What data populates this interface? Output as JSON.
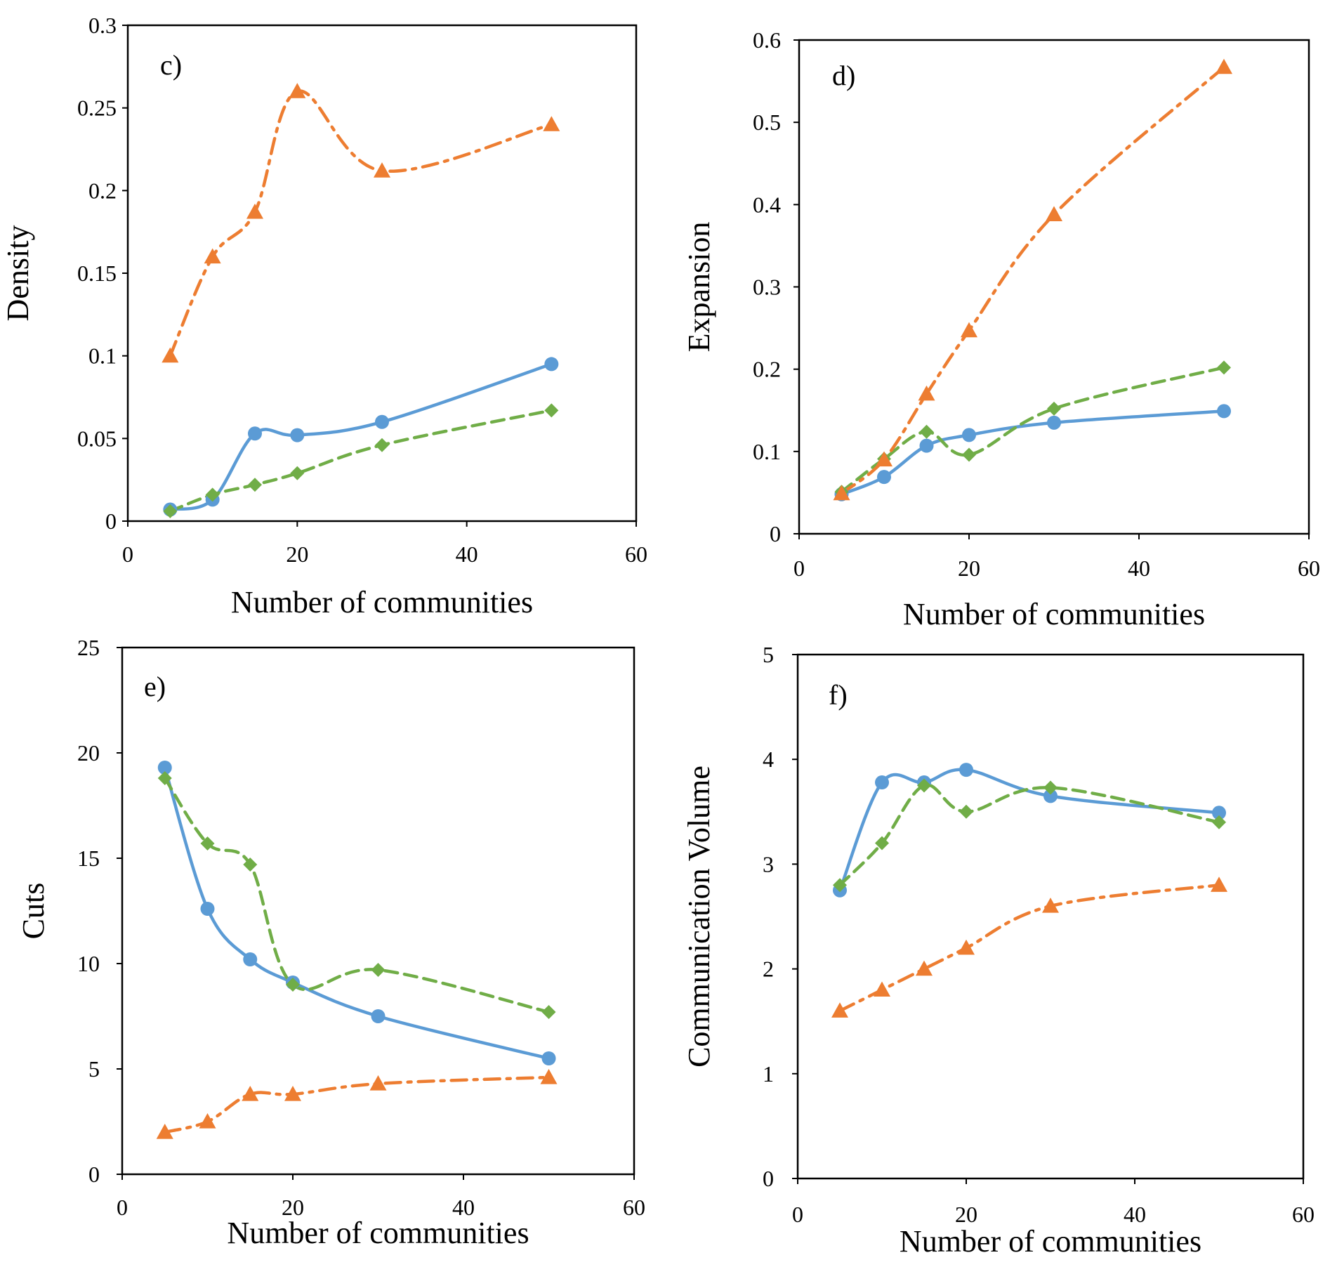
{
  "colors": {
    "blue": "#5B9BD5",
    "orange": "#ED7D31",
    "green": "#70AD47",
    "frame": "#000000"
  },
  "chart_data": [
    {
      "type": "line",
      "panel_label": "c)",
      "xlabel": "Number of communities",
      "ylabel": "Density",
      "xlim": [
        0,
        60
      ],
      "ylim": [
        0,
        0.3
      ],
      "xticks": [
        0,
        20,
        40,
        60
      ],
      "xtick_labels": [
        "0",
        "20",
        "40",
        "60"
      ],
      "yticks": [
        0,
        0.05,
        0.1,
        0.15,
        0.2,
        0.25,
        0.3
      ],
      "ytick_labels": [
        "0",
        "0.05",
        "0.1",
        "0.15",
        "0.2",
        "0.25",
        "0.3"
      ],
      "grid": false,
      "series": [
        {
          "name": "blue-circle-solid",
          "color": "#5B9BD5",
          "marker": "circle",
          "dash": "solid",
          "x": [
            5,
            10,
            15,
            20,
            30,
            50
          ],
          "values": [
            0.007,
            0.013,
            0.053,
            0.052,
            0.06,
            0.095
          ]
        },
        {
          "name": "green-diamond-dashed",
          "color": "#70AD47",
          "marker": "diamond",
          "dash": "dashed",
          "x": [
            5,
            10,
            15,
            20,
            30,
            50
          ],
          "values": [
            0.006,
            0.016,
            0.022,
            0.029,
            0.046,
            0.067
          ]
        },
        {
          "name": "orange-triangle-dashdot",
          "color": "#ED7D31",
          "marker": "triangle",
          "dash": "dashdot",
          "x": [
            5,
            10,
            15,
            20,
            30,
            50
          ],
          "values": [
            0.1,
            0.16,
            0.187,
            0.26,
            0.212,
            0.24
          ]
        }
      ]
    },
    {
      "type": "line",
      "panel_label": "d)",
      "xlabel": "Number of communities",
      "ylabel": "Expansion",
      "xlim": [
        0,
        60
      ],
      "ylim": [
        0,
        0.6
      ],
      "xticks": [
        0,
        20,
        40,
        60
      ],
      "xtick_labels": [
        "0",
        "20",
        "40",
        "60"
      ],
      "yticks": [
        0,
        0.1,
        0.2,
        0.3,
        0.4,
        0.5,
        0.6
      ],
      "ytick_labels": [
        "0",
        "0.1",
        "0.2",
        "0.3",
        "0.4",
        "0.5",
        "0.6"
      ],
      "grid": false,
      "series": [
        {
          "name": "blue-circle-solid",
          "color": "#5B9BD5",
          "marker": "circle",
          "dash": "solid",
          "x": [
            5,
            10,
            15,
            20,
            30,
            50
          ],
          "values": [
            0.048,
            0.069,
            0.107,
            0.12,
            0.135,
            0.149
          ]
        },
        {
          "name": "green-diamond-dashed",
          "color": "#70AD47",
          "marker": "diamond",
          "dash": "dashed",
          "x": [
            5,
            10,
            15,
            20,
            30,
            50
          ],
          "values": [
            0.051,
            0.091,
            0.124,
            0.096,
            0.152,
            0.202
          ]
        },
        {
          "name": "orange-triangle-dashdot",
          "color": "#ED7D31",
          "marker": "triangle",
          "dash": "dashdot",
          "x": [
            5,
            10,
            15,
            20,
            30,
            50
          ],
          "values": [
            0.049,
            0.09,
            0.17,
            0.247,
            0.388,
            0.567
          ]
        }
      ]
    },
    {
      "type": "line",
      "panel_label": "e)",
      "xlabel": "Number of communities",
      "ylabel": "Cuts",
      "xlim": [
        0,
        60
      ],
      "ylim": [
        0,
        25
      ],
      "xticks": [
        0,
        20,
        40,
        60
      ],
      "xtick_labels": [
        "0",
        "20",
        "40",
        "60"
      ],
      "yticks": [
        0,
        5,
        10,
        15,
        20,
        25
      ],
      "ytick_labels": [
        "0",
        "5",
        "10",
        "15",
        "20",
        "25"
      ],
      "grid": false,
      "series": [
        {
          "name": "blue-circle-solid",
          "color": "#5B9BD5",
          "marker": "circle",
          "dash": "solid",
          "x": [
            5,
            10,
            15,
            20,
            30,
            50
          ],
          "values": [
            19.3,
            12.6,
            10.2,
            9.1,
            7.5,
            5.5
          ]
        },
        {
          "name": "green-diamond-dashed",
          "color": "#70AD47",
          "marker": "diamond",
          "dash": "dashed",
          "x": [
            5,
            10,
            15,
            20,
            30,
            50
          ],
          "values": [
            18.8,
            15.7,
            14.7,
            9.0,
            9.7,
            7.7
          ]
        },
        {
          "name": "orange-triangle-dashdot",
          "color": "#ED7D31",
          "marker": "triangle",
          "dash": "dashdot",
          "x": [
            5,
            10,
            15,
            20,
            30,
            50
          ],
          "values": [
            2.0,
            2.5,
            3.8,
            3.8,
            4.3,
            4.6
          ]
        }
      ]
    },
    {
      "type": "line",
      "panel_label": "f)",
      "xlabel": "Number of communities",
      "ylabel": "Communication  Volume",
      "xlim": [
        0,
        60
      ],
      "ylim": [
        0,
        5
      ],
      "xticks": [
        0,
        20,
        40,
        60
      ],
      "xtick_labels": [
        "0",
        "20",
        "40",
        "60"
      ],
      "yticks": [
        0,
        1,
        2,
        3,
        4,
        5
      ],
      "ytick_labels": [
        "0",
        "1",
        "2",
        "3",
        "4",
        "5"
      ],
      "grid": false,
      "series": [
        {
          "name": "blue-circle-solid",
          "color": "#5B9BD5",
          "marker": "circle",
          "dash": "solid",
          "x": [
            5,
            10,
            15,
            20,
            30,
            50
          ],
          "values": [
            2.75,
            3.78,
            3.78,
            3.9,
            3.65,
            3.49
          ]
        },
        {
          "name": "green-diamond-dashed",
          "color": "#70AD47",
          "marker": "diamond",
          "dash": "dashed",
          "x": [
            5,
            10,
            15,
            20,
            30,
            50
          ],
          "values": [
            2.8,
            3.2,
            3.75,
            3.5,
            3.73,
            3.4
          ]
        },
        {
          "name": "orange-triangle-dashdot",
          "color": "#ED7D31",
          "marker": "triangle",
          "dash": "dashdot",
          "x": [
            5,
            10,
            15,
            20,
            30,
            50
          ],
          "values": [
            1.6,
            1.8,
            2.0,
            2.2,
            2.6,
            2.8
          ]
        }
      ]
    }
  ]
}
